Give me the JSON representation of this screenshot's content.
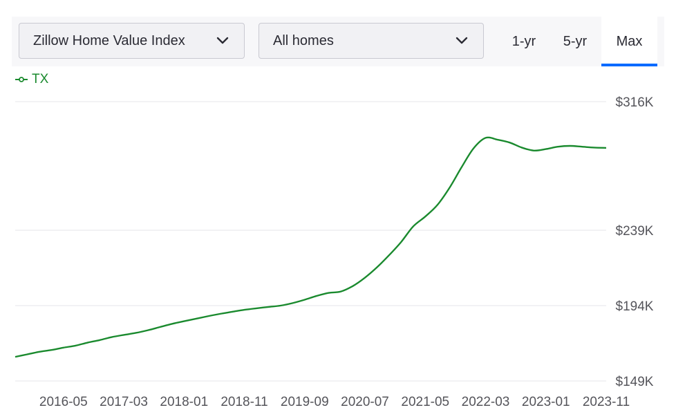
{
  "controls": {
    "metric_select": "Zillow Home Value Index",
    "type_select": "All homes",
    "range_tabs": [
      "1-yr",
      "5-yr",
      "Max"
    ],
    "active_tab": "Max",
    "accent_color": "#006aff"
  },
  "chart_data": {
    "type": "line",
    "series": [
      {
        "name": "TX",
        "color": "#1a8a2e",
        "x": [
          "2015-09",
          "2015-11",
          "2016-01",
          "2016-03",
          "2016-05",
          "2016-07",
          "2016-09",
          "2016-11",
          "2017-01",
          "2017-03",
          "2017-05",
          "2017-07",
          "2017-09",
          "2017-11",
          "2018-01",
          "2018-03",
          "2018-05",
          "2018-07",
          "2018-09",
          "2018-11",
          "2019-01",
          "2019-03",
          "2019-05",
          "2019-07",
          "2019-09",
          "2019-11",
          "2020-01",
          "2020-03",
          "2020-05",
          "2020-07",
          "2020-09",
          "2020-11",
          "2021-01",
          "2021-03",
          "2021-05",
          "2021-07",
          "2021-09",
          "2021-11",
          "2022-01",
          "2022-03",
          "2022-05",
          "2022-07",
          "2022-09",
          "2022-11",
          "2023-01",
          "2023-03",
          "2023-05",
          "2023-07",
          "2023-09",
          "2023-11"
        ],
        "values": [
          163.4,
          164.9,
          166.4,
          167.5,
          168.9,
          170.1,
          171.9,
          173.4,
          175.2,
          176.5,
          177.7,
          179.3,
          181.2,
          183.1,
          184.7,
          186.2,
          187.7,
          189.1,
          190.3,
          191.5,
          192.4,
          193.2,
          194.0,
          195.5,
          197.5,
          199.8,
          201.6,
          202.4,
          205.7,
          210.7,
          216.9,
          224.1,
          232.0,
          241.3,
          247.2,
          254.1,
          264.3,
          276.6,
          288.0,
          294.3,
          293.2,
          291.5,
          288.5,
          286.7,
          287.6,
          289.0,
          289.5,
          289.0,
          288.5,
          288.3
        ]
      }
    ],
    "x_ticks": [
      "2016-05",
      "2017-03",
      "2018-01",
      "2018-11",
      "2019-09",
      "2020-07",
      "2021-05",
      "2022-03",
      "2023-01",
      "2023-11"
    ],
    "y_ticks": [
      {
        "value": 149,
        "label": "$149K"
      },
      {
        "value": 194,
        "label": "$194K"
      },
      {
        "value": 239,
        "label": "$239K"
      },
      {
        "value": 316,
        "label": "$316K"
      }
    ],
    "ylim": [
      149,
      316
    ],
    "grid": true,
    "legend_position": "top-left"
  }
}
